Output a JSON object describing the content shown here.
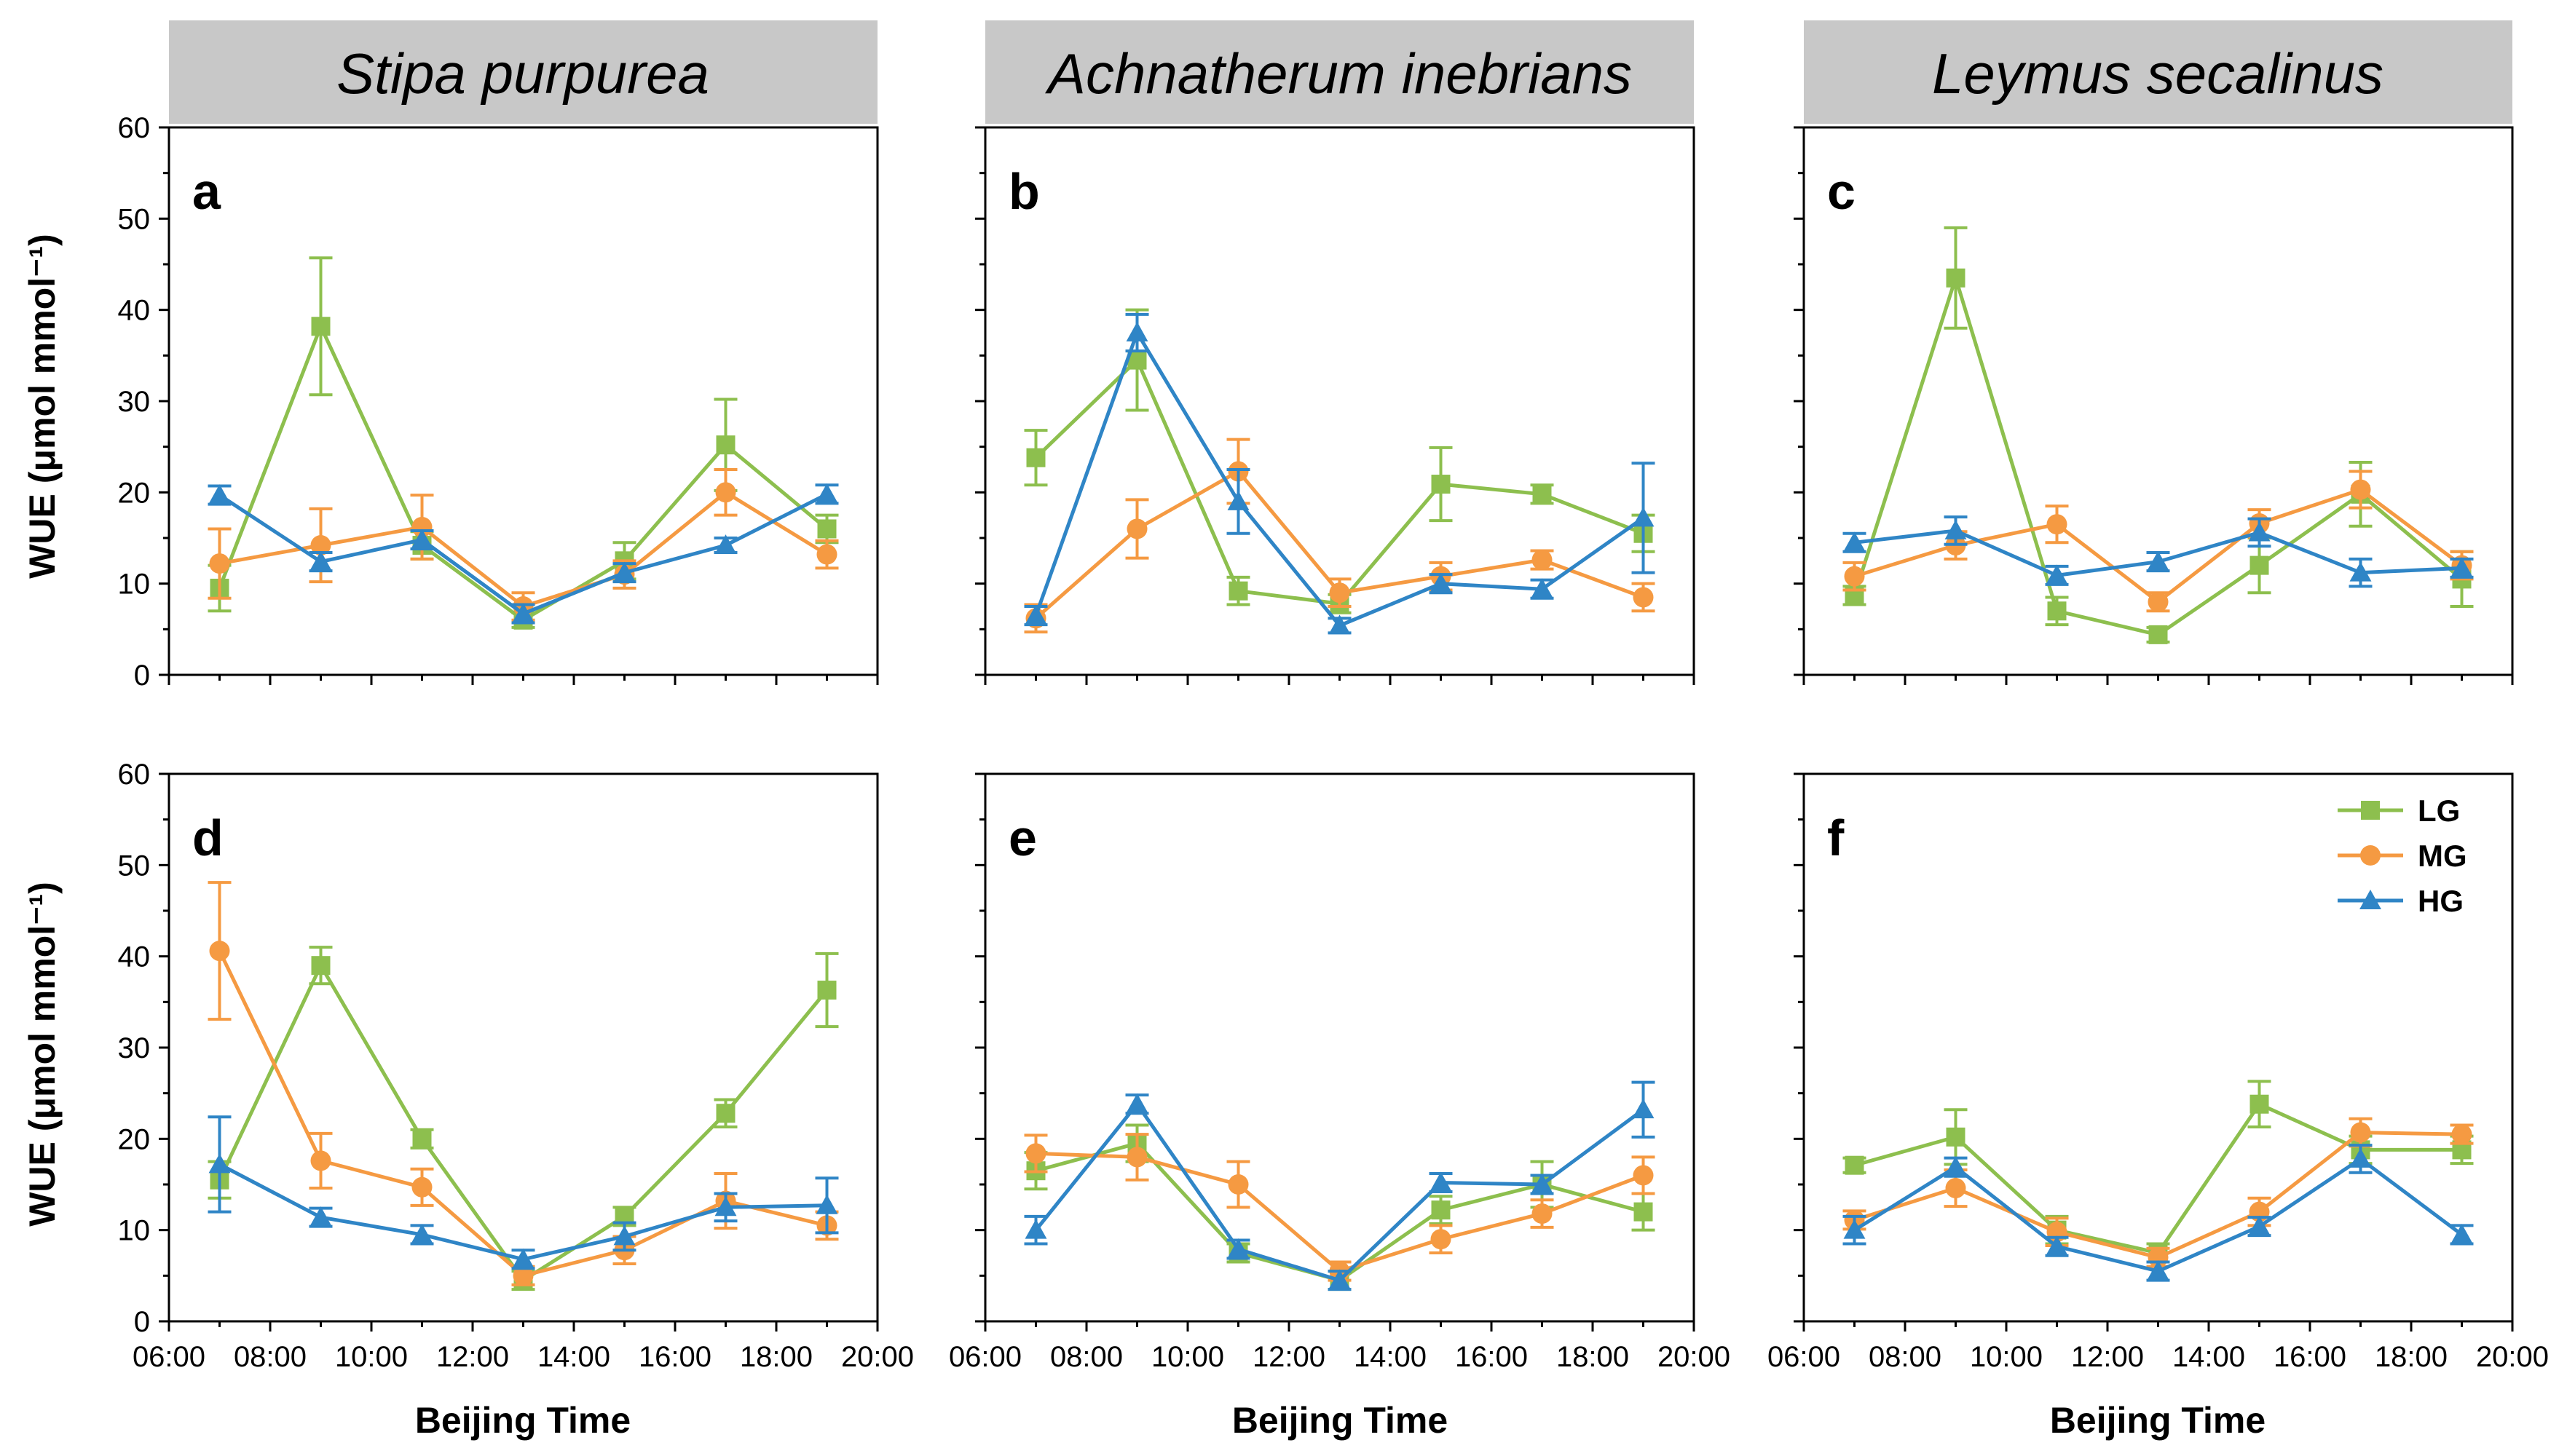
{
  "chart_data": {
    "type": "line",
    "ylabel": "WUE (μmol mmol⁻¹)",
    "xlabel": "Beijing Time",
    "x_ticks": [
      "06:00",
      "08:00",
      "10:00",
      "12:00",
      "14:00",
      "16:00",
      "18:00",
      "20:00"
    ],
    "y_ticks": [
      "0",
      "10",
      "20",
      "30",
      "40",
      "50",
      "60"
    ],
    "ylim": [
      0,
      60
    ],
    "xlim": [
      6,
      20
    ],
    "x": [
      7,
      9,
      11,
      13,
      15,
      17,
      19
    ],
    "legend": {
      "position": "top-right of panel f",
      "entries": [
        "LG",
        "MG",
        "HG"
      ]
    },
    "colors": {
      "LG": "#8DBF4E",
      "MG": "#F59A42",
      "HG": "#2F85C6",
      "header_bg": "#C8C8C8"
    },
    "species": [
      "Stipa purpurea",
      "Achnatherum inebrians",
      "Leymus secalinus"
    ],
    "panels": [
      {
        "letter": "a",
        "series": [
          {
            "name": "LG",
            "values": [
              9.5,
              38.2,
              14.2,
              6.0,
              12.5,
              25.2,
              16.0
            ],
            "err": [
              2.5,
              7.5,
              1.5,
              0.8,
              2.0,
              5.0,
              1.5
            ]
          },
          {
            "name": "MG",
            "values": [
              12.2,
              14.2,
              16.2,
              7.5,
              11.0,
              20.0,
              13.2
            ],
            "err": [
              3.8,
              4.0,
              3.5,
              1.5,
              1.5,
              2.5,
              1.5
            ]
          },
          {
            "name": "HG",
            "values": [
              19.7,
              12.4,
              14.8,
              6.7,
              11.2,
              14.2,
              19.8
            ],
            "err": [
              1.0,
              1.0,
              1.0,
              1.0,
              1.0,
              0.8,
              1.0
            ]
          }
        ]
      },
      {
        "letter": "b",
        "series": [
          {
            "name": "LG",
            "values": [
              23.8,
              34.5,
              9.2,
              7.8,
              20.9,
              19.8,
              15.5
            ],
            "err": [
              3.0,
              5.5,
              1.5,
              1.0,
              4.0,
              1.0,
              2.0
            ]
          },
          {
            "name": "MG",
            "values": [
              6.2,
              16.0,
              22.3,
              9.0,
              10.8,
              12.6,
              8.5
            ],
            "err": [
              1.5,
              3.2,
              3.5,
              1.5,
              1.5,
              1.0,
              1.5
            ]
          },
          {
            "name": "HG",
            "values": [
              6.5,
              37.5,
              19.0,
              5.4,
              10.0,
              9.4,
              17.2
            ],
            "err": [
              1.0,
              2.0,
              3.5,
              0.8,
              1.0,
              1.0,
              6.0
            ]
          }
        ]
      },
      {
        "letter": "c",
        "series": [
          {
            "name": "LG",
            "values": [
              8.7,
              43.5,
              7.0,
              4.4,
              12.0,
              19.8,
              10.5
            ],
            "err": [
              1.0,
              5.5,
              1.5,
              0.8,
              3.0,
              3.5,
              3.0
            ]
          },
          {
            "name": "MG",
            "values": [
              10.8,
              14.2,
              16.5,
              8.0,
              16.6,
              20.3,
              12.0
            ],
            "err": [
              1.5,
              1.5,
              2.0,
              1.0,
              1.5,
              2.0,
              1.5
            ]
          },
          {
            "name": "HG",
            "values": [
              14.5,
              15.8,
              10.9,
              12.4,
              15.6,
              11.2,
              11.7
            ],
            "err": [
              1.0,
              1.5,
              1.0,
              1.0,
              1.5,
              1.5,
              1.0
            ]
          }
        ]
      },
      {
        "letter": "d",
        "series": [
          {
            "name": "LG",
            "values": [
              15.5,
              39.0,
              20.0,
              4.5,
              11.5,
              22.8,
              36.3
            ],
            "err": [
              2.0,
              2.0,
              1.0,
              1.0,
              1.0,
              1.5,
              4.0
            ]
          },
          {
            "name": "MG",
            "values": [
              40.6,
              17.6,
              14.7,
              5.0,
              7.8,
              13.2,
              10.5
            ],
            "err": [
              7.5,
              3.0,
              2.0,
              1.0,
              1.5,
              3.0,
              1.5
            ]
          },
          {
            "name": "HG",
            "values": [
              17.2,
              11.4,
              9.5,
              6.8,
              9.3,
              12.5,
              12.7
            ],
            "err": [
              5.2,
              1.0,
              1.0,
              1.0,
              1.5,
              1.5,
              3.0
            ]
          }
        ]
      },
      {
        "letter": "e",
        "series": [
          {
            "name": "LG",
            "values": [
              16.5,
              19.5,
              7.5,
              4.5,
              12.2,
              15.0,
              12.0
            ],
            "err": [
              2.0,
              2.0,
              1.0,
              1.0,
              1.5,
              2.5,
              2.0
            ]
          },
          {
            "name": "MG",
            "values": [
              18.4,
              18.0,
              15.0,
              5.5,
              9.0,
              11.8,
              16.0
            ],
            "err": [
              2.0,
              2.5,
              2.5,
              1.0,
              1.5,
              1.5,
              2.0
            ]
          },
          {
            "name": "HG",
            "values": [
              10.0,
              23.8,
              7.9,
              4.5,
              15.2,
              15.0,
              23.2
            ],
            "err": [
              1.5,
              1.0,
              1.0,
              1.0,
              1.0,
              1.0,
              3.0
            ]
          }
        ]
      },
      {
        "letter": "f",
        "series": [
          {
            "name": "LG",
            "values": [
              17.1,
              20.2,
              10.0,
              7.5,
              23.8,
              18.8,
              18.8
            ],
            "err": [
              0.8,
              3.0,
              1.5,
              1.0,
              2.5,
              1.5,
              1.5
            ]
          },
          {
            "name": "MG",
            "values": [
              11.1,
              14.6,
              9.8,
              7.0,
              12.0,
              20.7,
              20.5
            ],
            "err": [
              1.0,
              2.0,
              1.5,
              1.0,
              1.5,
              1.5,
              1.0
            ]
          },
          {
            "name": "HG",
            "values": [
              10.0,
              16.9,
              8.2,
              5.5,
              10.4,
              17.8,
              9.5
            ],
            "err": [
              1.5,
              1.0,
              1.0,
              1.0,
              1.0,
              1.5,
              1.0
            ]
          }
        ]
      }
    ]
  }
}
